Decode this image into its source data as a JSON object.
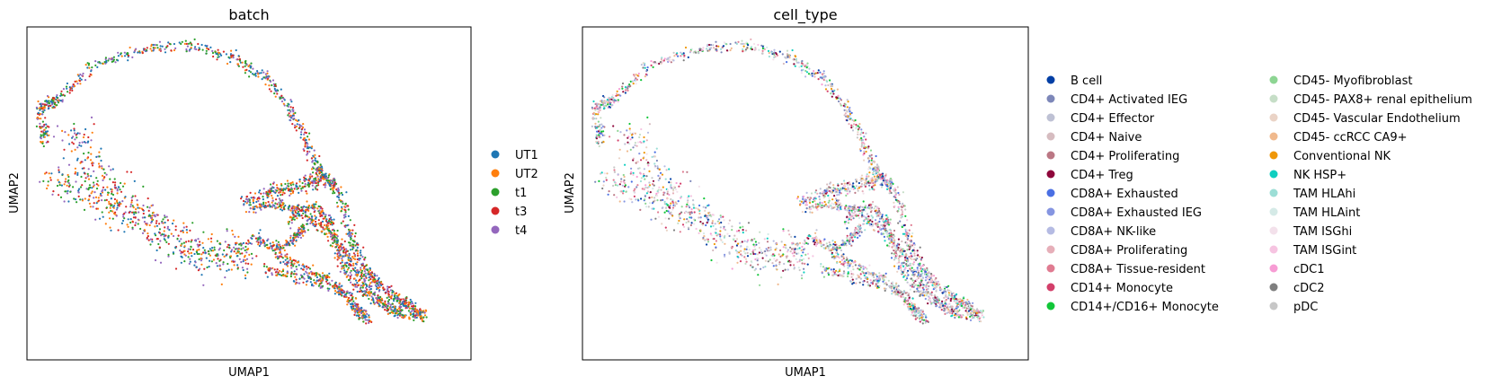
{
  "chart_data": [
    {
      "type": "scatter",
      "title": "batch",
      "xlabel": "UMAP1",
      "ylabel": "UMAP2",
      "ticks": "none",
      "grid": false,
      "legend_position": "right",
      "legend_columns": 1,
      "series": [
        {
          "name": "UT1",
          "color": "#1f77b4"
        },
        {
          "name": "UT2",
          "color": "#ff7f0e"
        },
        {
          "name": "t1",
          "color": "#2ca02c"
        },
        {
          "name": "t3",
          "color": "#d62728"
        },
        {
          "name": "t4",
          "color": "#9467bd"
        }
      ]
    },
    {
      "type": "scatter",
      "title": "cell_type",
      "xlabel": "UMAP1",
      "ylabel": "UMAP2",
      "ticks": "none",
      "grid": false,
      "legend_position": "right",
      "legend_columns": 2,
      "series": [
        {
          "name": "B cell",
          "color": "#023fa5"
        },
        {
          "name": "CD4+ Activated IEG",
          "color": "#7d87b9"
        },
        {
          "name": "CD4+ Effector",
          "color": "#bec1d4"
        },
        {
          "name": "CD4+ Naive",
          "color": "#d6bcc0"
        },
        {
          "name": "CD4+ Proliferating",
          "color": "#bb7784"
        },
        {
          "name": "CD4+ Treg",
          "color": "#8e063b"
        },
        {
          "name": "CD8A+ Exhausted",
          "color": "#4a6fe3"
        },
        {
          "name": "CD8A+ Exhausted IEG",
          "color": "#8595e1"
        },
        {
          "name": "CD8A+ NK-like",
          "color": "#b5bbe3"
        },
        {
          "name": "CD8A+ Proliferating",
          "color": "#e6afb9"
        },
        {
          "name": "CD8A+ Tissue-resident",
          "color": "#e07b91"
        },
        {
          "name": "CD14+ Monocyte",
          "color": "#d33f6a"
        },
        {
          "name": "CD14+/CD16+ Monocyte",
          "color": "#11c638"
        },
        {
          "name": "CD45- Myofibroblast",
          "color": "#8dd593"
        },
        {
          "name": "CD45- PAX8+ renal epithelium",
          "color": "#c6dec7"
        },
        {
          "name": "CD45- Vascular Endothelium",
          "color": "#ead3c6"
        },
        {
          "name": "CD45- ccRCC CA9+",
          "color": "#f0b98d"
        },
        {
          "name": "Conventional NK",
          "color": "#ef9708"
        },
        {
          "name": "NK HSP+",
          "color": "#0fcfc0"
        },
        {
          "name": "TAM HLAhi",
          "color": "#9cded6"
        },
        {
          "name": "TAM HLAint",
          "color": "#d5eae7"
        },
        {
          "name": "TAM ISGhi",
          "color": "#f3e1eb"
        },
        {
          "name": "TAM ISGint",
          "color": "#f6c4e1"
        },
        {
          "name": "cDC1",
          "color": "#f79cd4"
        },
        {
          "name": "cDC2",
          "color": "#7f7f7f"
        },
        {
          "name": "pDC",
          "color": "#c7c7c7"
        }
      ]
    }
  ]
}
